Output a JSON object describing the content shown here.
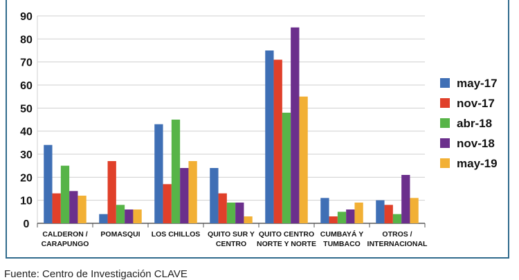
{
  "chart_data": {
    "type": "bar",
    "categories": [
      [
        "CALDERON /",
        "CARAPUNGO"
      ],
      [
        "POMASQUI"
      ],
      [
        "LOS CHILLOS"
      ],
      [
        "QUITO SUR Y",
        "CENTRO"
      ],
      [
        "QUITO CENTRO",
        "NORTE Y NORTE"
      ],
      [
        "CUMBAYÁ Y",
        "TUMBACO"
      ],
      [
        "OTROS /",
        "INTERNACIONAL"
      ]
    ],
    "series": [
      {
        "name": "may-17",
        "color": "#3f6fb5",
        "values": [
          34,
          4,
          43,
          24,
          75,
          11,
          10
        ]
      },
      {
        "name": "nov-17",
        "color": "#e0402a",
        "values": [
          13,
          27,
          17,
          13,
          71,
          3,
          8
        ]
      },
      {
        "name": "abr-18",
        "color": "#57b448",
        "values": [
          25,
          8,
          45,
          9,
          48,
          5,
          4
        ]
      },
      {
        "name": "nov-18",
        "color": "#6b2f8c",
        "values": [
          14,
          6,
          24,
          9,
          85,
          6,
          21
        ]
      },
      {
        "name": "may-19",
        "color": "#f2b035",
        "values": [
          12,
          6,
          27,
          3,
          55,
          9,
          11
        ]
      }
    ],
    "yticks": [
      0,
      10,
      20,
      30,
      40,
      50,
      60,
      70,
      80,
      90
    ],
    "ylim": [
      0,
      90
    ],
    "grid": true,
    "legend": "right"
  },
  "source": "Fuente: Centro de Investigación CLAVE"
}
